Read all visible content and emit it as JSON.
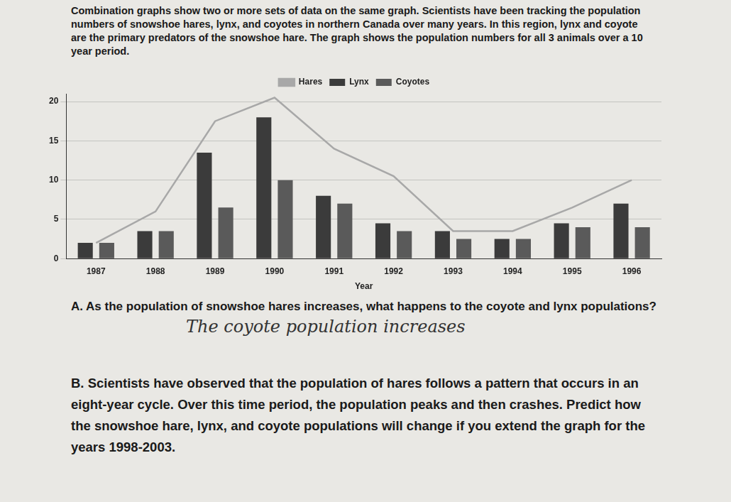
{
  "intro": "Combination graphs show two or more sets of data on the same graph. Scientists have been tracking the population numbers of snowshoe hares, lynx, and coyotes in northern Canada over many years. In this region, lynx and coyote are the primary predators of the snowshoe hare. The graph shows the population numbers for all 3 animals over a 10 year period.",
  "chart_data": {
    "type": "bar",
    "x_label": "Year",
    "categories": [
      "1987",
      "1988",
      "1989",
      "1990",
      "1991",
      "1992",
      "1993",
      "1994",
      "1995",
      "1996"
    ],
    "series": [
      {
        "name": "Lynx",
        "color": "#3b3b3b",
        "values": [
          2,
          3.5,
          13.5,
          18,
          8,
          4.5,
          3.5,
          2.5,
          4.5,
          7
        ]
      },
      {
        "name": "Coyotes",
        "color": "#5a5a5a",
        "values": [
          2,
          3.5,
          6.5,
          10,
          7,
          3.5,
          2.5,
          2.5,
          4,
          4
        ]
      },
      {
        "name": "Hares",
        "color": "#a8a8a8",
        "type": "line",
        "marker": "none",
        "values": [
          2,
          6,
          17.5,
          20.5,
          14,
          10.5,
          3.5,
          3.5,
          6.5,
          10
        ]
      }
    ],
    "ylim": [
      0,
      21
    ],
    "yticks": [
      0,
      5,
      10,
      15,
      20
    ],
    "grid": true,
    "legend": "top"
  },
  "question_a": "A. As the population of snowshoe hares increases, what happens to the coyote and lynx populations?",
  "answer_a": "The coyote population increases",
  "question_b": "B. Scientists have observed that the population of hares follows a pattern that occurs in an eight-year cycle. Over this time period, the population peaks and then crashes. Predict how the snowshoe hare, lynx, and coyote populations will change if you extend the graph for the years 1998-2003."
}
